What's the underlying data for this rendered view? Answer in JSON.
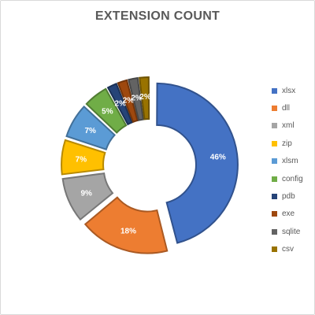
{
  "chart_data": {
    "type": "pie",
    "variant": "exploded-doughnut",
    "title": "EXTENSION COUNT",
    "categories": [
      "xlsx",
      "dll",
      "xml",
      "zip",
      "xlsm",
      "config",
      "pdb",
      "exe",
      "sqlite",
      "csv"
    ],
    "values": [
      46,
      18,
      9,
      7,
      7,
      5,
      2,
      2,
      2,
      2
    ],
    "data_labels": [
      "46%",
      "18%",
      "9%",
      "7%",
      "7%",
      "5%",
      "2%",
      "2%",
      "2%",
      "2%"
    ],
    "colors": [
      "#4472C4",
      "#ED7D31",
      "#A5A5A5",
      "#FFC000",
      "#5B9BD5",
      "#70AD47",
      "#264478",
      "#9E480E",
      "#636363",
      "#997300"
    ],
    "legend_position": "right"
  }
}
